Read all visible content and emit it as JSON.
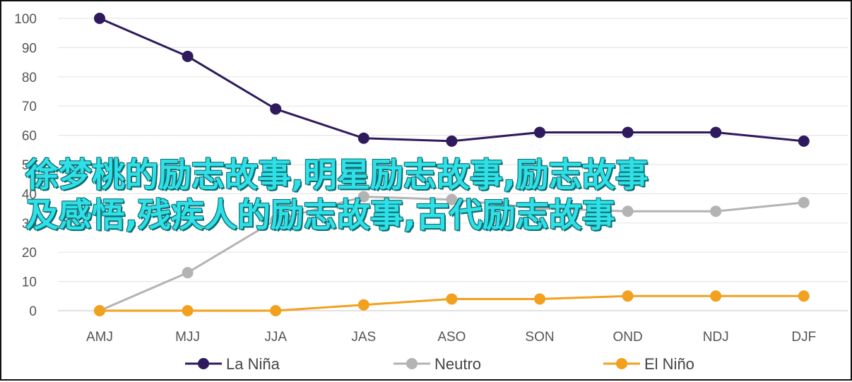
{
  "chart_data": {
    "type": "line",
    "categories": [
      "AMJ",
      "MJJ",
      "JJA",
      "JAS",
      "ASO",
      "SON",
      "OND",
      "NDJ",
      "DJF"
    ],
    "ylim": [
      0,
      100
    ],
    "yticks": [
      0,
      10,
      20,
      30,
      40,
      50,
      60,
      70,
      80,
      90,
      100
    ],
    "grid": "horizontal",
    "legend_position": "bottom",
    "series": [
      {
        "name": "La Niña",
        "color": "#2e1a5c",
        "values": [
          100,
          87,
          69,
          59,
          58,
          61,
          61,
          61,
          58
        ]
      },
      {
        "name": "Neutro",
        "color": "#b3b3b3",
        "values": [
          0,
          13,
          31,
          39,
          38,
          35,
          34,
          34,
          37
        ]
      },
      {
        "name": "El Niño",
        "color": "#f2a11f",
        "values": [
          0,
          0,
          0,
          2,
          4,
          4,
          5,
          5,
          5
        ]
      }
    ]
  },
  "overlay": {
    "line1": "徐梦桃的励志故事,明星励志故事,励志故事",
    "line2": "及感悟,残疾人的励志故事,古代励志故事"
  }
}
